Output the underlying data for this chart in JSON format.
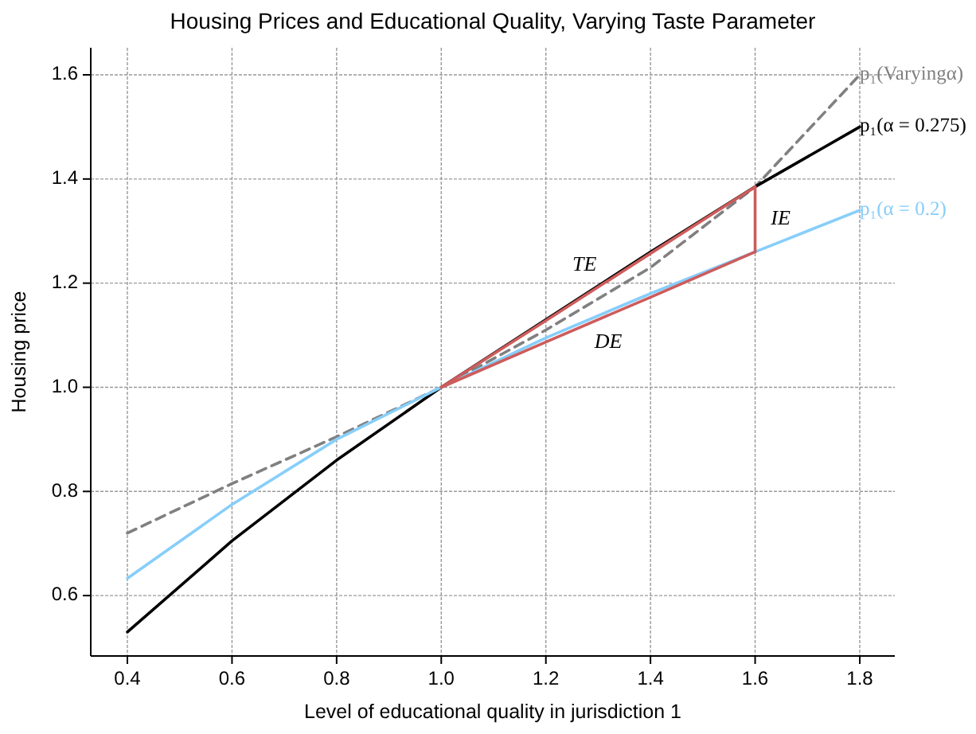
{
  "chart_data": {
    "type": "line",
    "title": "Housing Prices and Educational Quality, Varying Taste Parameter",
    "xlabel": "Level of educational quality in jurisdiction 1",
    "ylabel": "Housing price",
    "x": [
      0.4,
      0.6,
      0.8,
      1.0,
      1.2,
      1.4,
      1.6,
      1.8
    ],
    "series": [
      {
        "name": "p₁(Varyingα)",
        "color": "#808080",
        "line_style": "dashed",
        "values": [
          0.72,
          0.815,
          0.905,
          1.0,
          1.11,
          1.23,
          1.385,
          1.6
        ]
      },
      {
        "name": "p₁(α = 0.275)",
        "color": "#000000",
        "values": [
          0.53,
          0.705,
          0.86,
          1.0,
          1.13,
          1.26,
          1.385,
          1.5
        ]
      },
      {
        "name": "p₁(α = 0.2)",
        "color": "#87cefa",
        "values": [
          0.633,
          0.775,
          0.9,
          1.0,
          1.095,
          1.18,
          1.26,
          1.34
        ]
      },
      {
        "color": "#cd5c5c",
        "values": [
          null,
          null,
          null,
          1.0,
          1.128,
          1.257,
          1.385,
          null
        ]
      },
      {
        "color": "#cd5c5c",
        "values": [
          null,
          null,
          null,
          1.0,
          1.087,
          1.173,
          1.26,
          null
        ]
      },
      {
        "color": "#cd5c5c",
        "x": [
          1.6,
          1.6
        ],
        "values": [
          1.385,
          1.26
        ]
      }
    ],
    "annotations": [
      "TE",
      "DE",
      "IE"
    ],
    "xlim": [
      0.33,
      1.867
    ],
    "ylim": [
      0.484,
      1.652
    ],
    "xticks": [
      {
        "value": 0.4,
        "label": "0.4"
      },
      {
        "value": 0.6,
        "label": "0.6"
      },
      {
        "value": 0.8,
        "label": "0.8"
      },
      {
        "value": 1.0,
        "label": "1.0"
      },
      {
        "value": 1.2,
        "label": "1.2"
      },
      {
        "value": 1.4,
        "label": "1.4"
      },
      {
        "value": 1.6,
        "label": "1.6"
      },
      {
        "value": 1.8,
        "label": "1.8"
      }
    ],
    "yticks": [
      {
        "value": 0.6,
        "label": "0.6"
      },
      {
        "value": 0.8,
        "label": "0.8"
      },
      {
        "value": 1.0,
        "label": "1.0"
      },
      {
        "value": 1.2,
        "label": "1.2"
      },
      {
        "value": 1.4,
        "label": "1.4"
      },
      {
        "value": 1.6,
        "label": "1.6"
      }
    ],
    "grid": true
  }
}
